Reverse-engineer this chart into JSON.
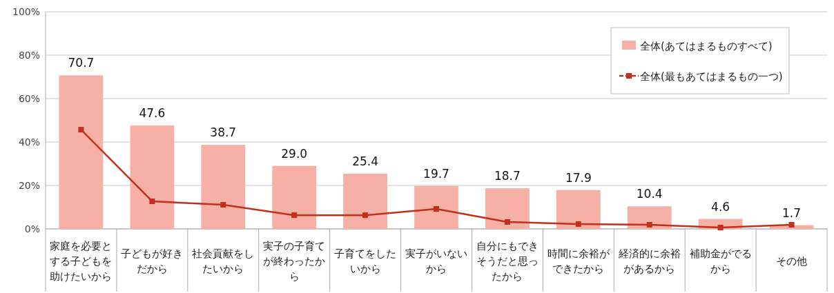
{
  "chart_data": {
    "type": "bar",
    "categories": [
      "家庭を必要とする子どもを助けたいから",
      "子どもが好きだから",
      "社会貢献をしたいから",
      "実子の子育てが終わったから",
      "子育てをしたいから",
      "実子がいないから",
      "自分にもできそうだと思ったから",
      "時間に余裕ができたから",
      "経済的に余裕があるから",
      "補助金がでるから",
      "その他"
    ],
    "series": [
      {
        "name": "全体(あてはまるものすべて)",
        "color": "#f7b0a5",
        "values": [
          70.7,
          47.6,
          38.7,
          29.0,
          25.4,
          19.7,
          18.7,
          17.9,
          10.4,
          4.6,
          1.7
        ],
        "value_labels": [
          "70.7",
          "47.6",
          "38.7",
          "29.0",
          "25.4",
          "19.7",
          "18.7",
          "17.9",
          "10.4",
          "4.6",
          "1.7"
        ]
      },
      {
        "name": "全体(最もあてはまるもの一つ)",
        "type": "line",
        "color": "#c0301a",
        "marker": "square",
        "values": [
          45.7,
          12.7,
          11.1,
          6.3,
          6.3,
          9.2,
          3.2,
          2.2,
          1.9,
          0.6,
          1.9
        ]
      }
    ],
    "ylim": [
      0,
      100
    ],
    "yticks": [
      {
        "value": 0,
        "label": "0%"
      },
      {
        "value": 20,
        "label": "20%"
      },
      {
        "value": 40,
        "label": "40%"
      },
      {
        "value": 60,
        "label": "60%"
      },
      {
        "value": 80,
        "label": "80%"
      },
      {
        "value": 100,
        "label": "100%"
      }
    ],
    "grid": "y",
    "legend": "top right"
  }
}
